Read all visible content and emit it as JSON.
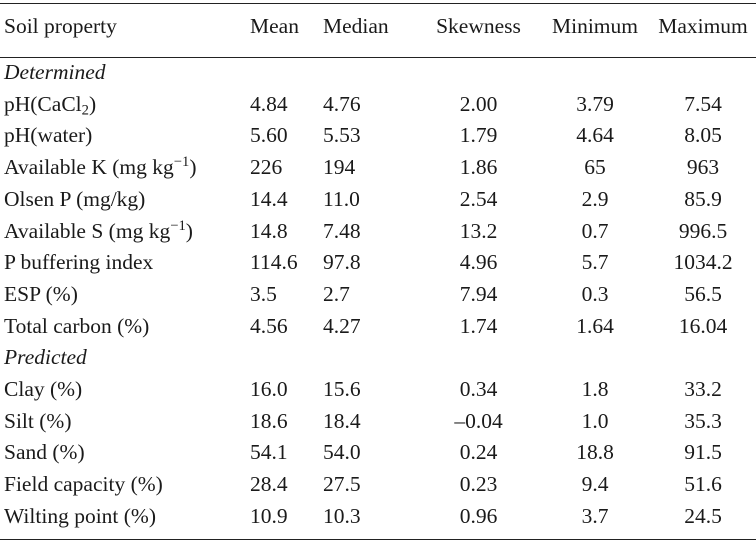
{
  "table": {
    "headers": {
      "property": "Soil property",
      "mean": "Mean",
      "median": "Median",
      "skewness": "Skewness",
      "minimum": "Minimum",
      "maximum": "Maximum"
    },
    "sections": {
      "determined": "Determined",
      "predicted": "Predicted"
    },
    "rows": [
      {
        "label_pre": "pH(CaCl",
        "label_sub": "2",
        "label_post": ")",
        "mean": "4.84",
        "median": "4.76",
        "skewness": "2.00",
        "minimum": "3.79",
        "maximum": "7.54"
      },
      {
        "label": "pH(water)",
        "mean": "5.60",
        "median": "5.53",
        "skewness": "1.79",
        "minimum": "4.64",
        "maximum": "8.05"
      },
      {
        "label_pre": "Available K (mg kg",
        "label_sup": "−1",
        "label_post": ")",
        "mean": "226",
        "median": "194",
        "skewness": "1.86",
        "minimum": "65",
        "maximum": "963"
      },
      {
        "label": "Olsen P (mg/kg)",
        "mean": "14.4",
        "median": "11.0",
        "skewness": "2.54",
        "minimum": "2.9",
        "maximum": "85.9"
      },
      {
        "label_pre": "Available S (mg kg",
        "label_sup": "−1",
        "label_post": ")",
        "mean": "14.8",
        "median": "7.48",
        "skewness": "13.2",
        "minimum": "0.7",
        "maximum": "996.5"
      },
      {
        "label": "P buffering index",
        "mean": "114.6",
        "median": "97.8",
        "skewness": "4.96",
        "minimum": "5.7",
        "maximum": "1034.2"
      },
      {
        "label": "ESP (%)",
        "mean": "3.5",
        "median": "2.7",
        "skewness": "7.94",
        "minimum": "0.3",
        "maximum": "56.5"
      },
      {
        "label": "Total carbon (%)",
        "mean": "4.56",
        "median": "4.27",
        "skewness": "1.74",
        "minimum": "1.64",
        "maximum": "16.04"
      },
      {
        "label": "Clay (%)",
        "mean": "16.0",
        "median": "15.6",
        "skewness": "0.34",
        "minimum": "1.8",
        "maximum": "33.2"
      },
      {
        "label": "Silt (%)",
        "mean": "18.6",
        "median": "18.4",
        "skewness": "–0.04",
        "minimum": "1.0",
        "maximum": "35.3"
      },
      {
        "label": "Sand (%)",
        "mean": "54.1",
        "median": "54.0",
        "skewness": "0.24",
        "minimum": "18.8",
        "maximum": "91.5"
      },
      {
        "label": "Field capacity (%)",
        "mean": "28.4",
        "median": "27.5",
        "skewness": "0.23",
        "minimum": "9.4",
        "maximum": "51.6"
      },
      {
        "label": "Wilting point (%)",
        "mean": "10.9",
        "median": "10.3",
        "skewness": "0.96",
        "minimum": "3.7",
        "maximum": "24.5"
      }
    ]
  }
}
